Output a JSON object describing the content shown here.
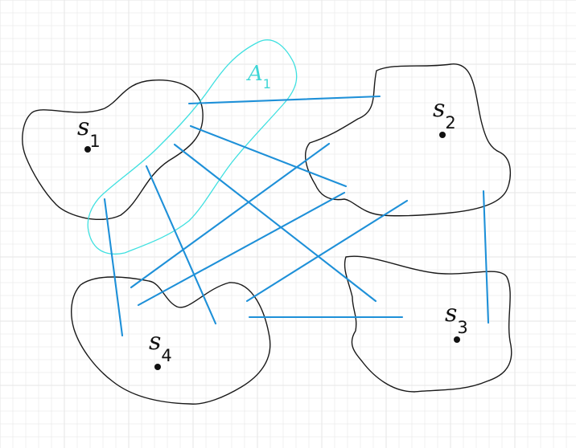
{
  "diagram": {
    "points": [
      {
        "id": "s1",
        "name": "s",
        "sub": "1"
      },
      {
        "id": "s2",
        "name": "s",
        "sub": "2"
      },
      {
        "id": "s3",
        "name": "s",
        "sub": "3"
      },
      {
        "id": "s4",
        "name": "s",
        "sub": "4"
      }
    ],
    "region": {
      "name": "A",
      "sub": "1"
    },
    "colors": {
      "grid": "#e6e6e6",
      "outline": "#1a1a1a",
      "segment": "#1e90d8",
      "region": "#3fe0e0"
    }
  }
}
